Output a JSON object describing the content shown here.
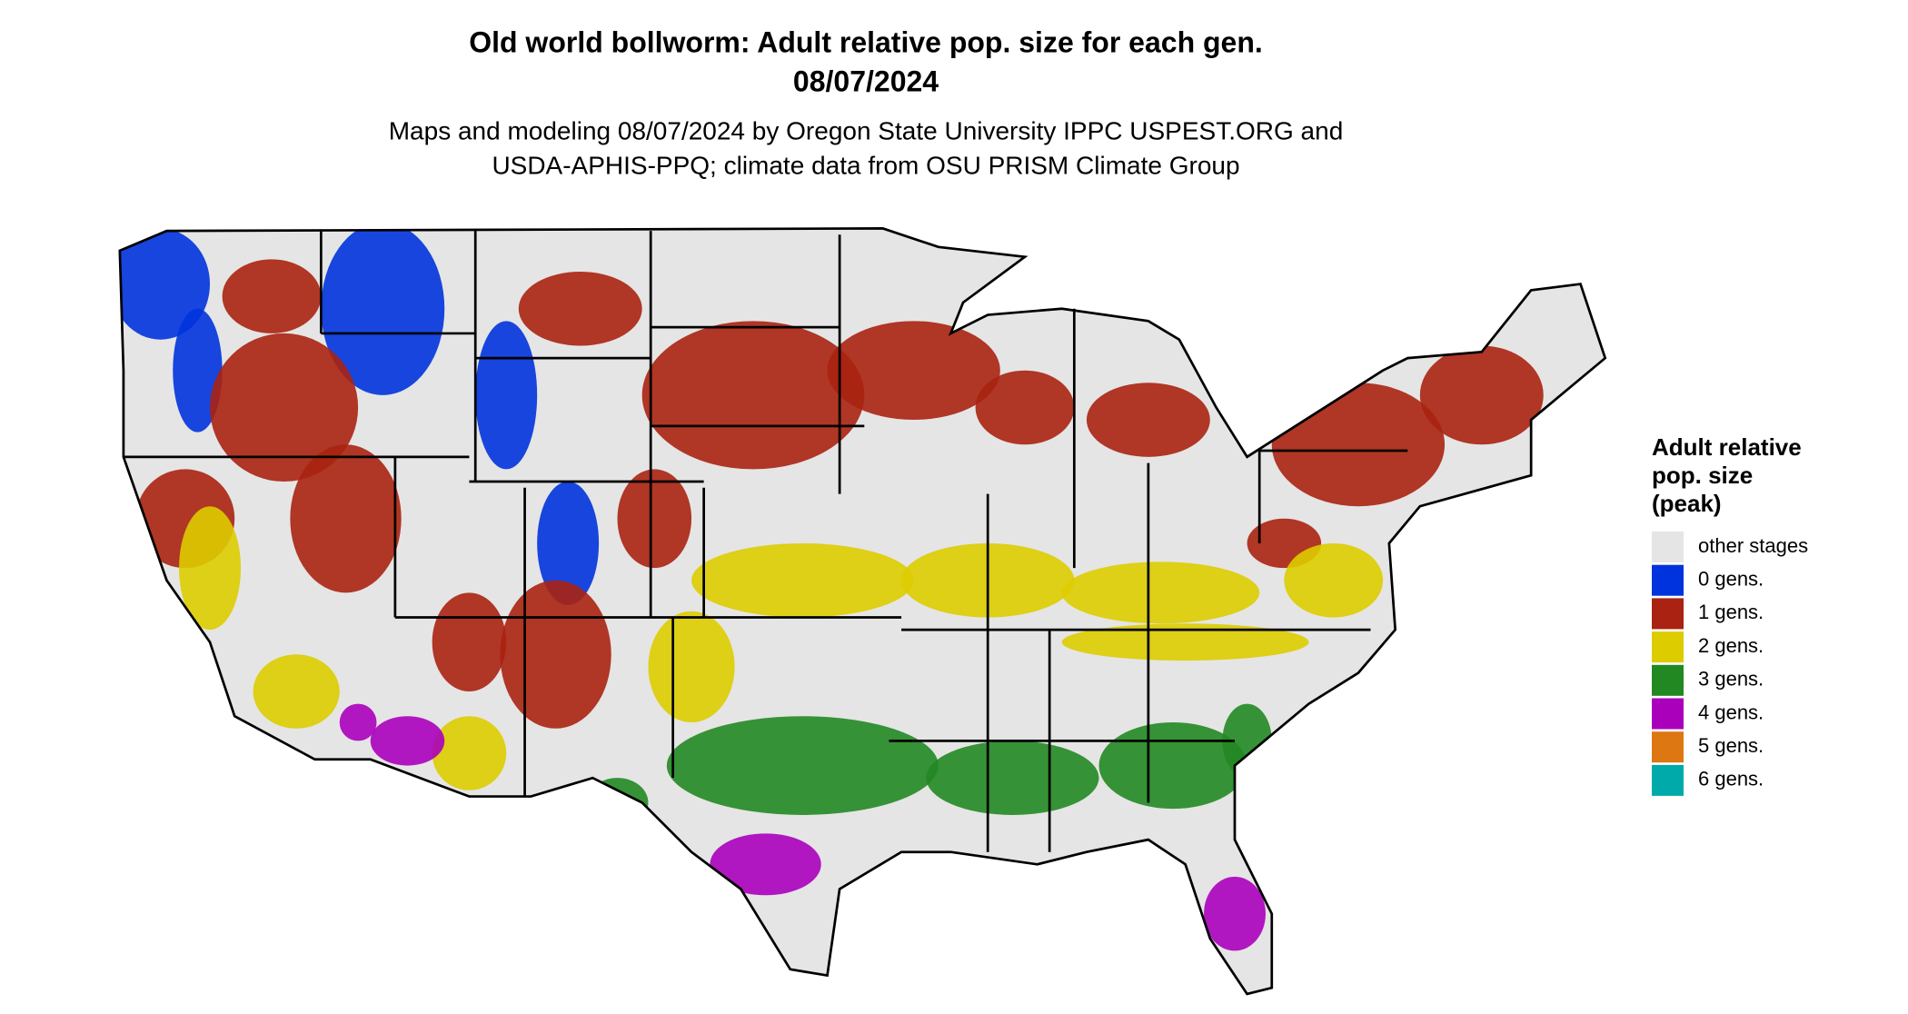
{
  "title": [
    "Old world bollworm: Adult relative pop. size for each gen.",
    "08/07/2024"
  ],
  "subtitle": [
    "Maps and modeling 08/07/2024 by Oregon State University IPPC USPEST.ORG and",
    "USDA-APHIS-PPQ; climate data from OSU PRISM Climate Group"
  ],
  "legend": {
    "title": [
      "Adult relative",
      "pop. size",
      "(peak)"
    ],
    "items": [
      {
        "label": "other stages",
        "color": "#e5e5e5"
      },
      {
        "label": "0 gens.",
        "color": "#0033dd"
      },
      {
        "label": "1 gens.",
        "color": "#aa2211"
      },
      {
        "label": "2 gens.",
        "color": "#ddcc00"
      },
      {
        "label": "3 gens.",
        "color": "#228822"
      },
      {
        "label": "4 gens.",
        "color": "#aa00bb"
      },
      {
        "label": "5 gens.",
        "color": "#dd7711"
      },
      {
        "label": "6 gens.",
        "color": "#00aaaa"
      }
    ]
  }
}
